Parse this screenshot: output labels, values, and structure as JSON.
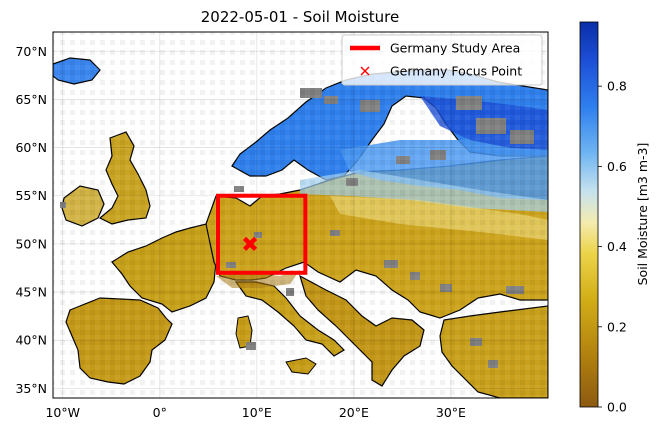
{
  "title": "2022-05-01 - Soil Moisture",
  "map": {
    "lon_range": [
      -11,
      40
    ],
    "lat_range": [
      34,
      72
    ],
    "lat_ticks": [
      {
        "value": 70,
        "label": "70°N"
      },
      {
        "value": 65,
        "label": "65°N"
      },
      {
        "value": 60,
        "label": "60°N"
      },
      {
        "value": 55,
        "label": "55°N"
      },
      {
        "value": 50,
        "label": "50°N"
      },
      {
        "value": 45,
        "label": "45°N"
      },
      {
        "value": 40,
        "label": "40°N"
      },
      {
        "value": 35,
        "label": "35°N"
      }
    ],
    "lon_ticks": [
      {
        "value": -10,
        "label": "10°W"
      },
      {
        "value": 0,
        "label": "0°"
      },
      {
        "value": 10,
        "label": "10°E"
      },
      {
        "value": 20,
        "label": "20°E"
      },
      {
        "value": 30,
        "label": "30°E"
      }
    ],
    "grid": true,
    "study_area": {
      "lon": [
        6,
        15
      ],
      "lat": [
        47,
        55
      ],
      "color": "#ff0000"
    },
    "focus_point": {
      "lon": 9.3,
      "lat": 50.0,
      "color": "#ff0000"
    },
    "colors": {
      "missing": "#808080",
      "coastline": "#000000",
      "ocean": "#ffffff"
    }
  },
  "legend": {
    "placement": "top-right",
    "entries": [
      {
        "label": "Germany Study Area",
        "kind": "line",
        "color": "#ff0000"
      },
      {
        "label": "Germany Focus Point",
        "kind": "x-marker",
        "color": "#ff0000"
      }
    ]
  },
  "colorbar": {
    "label": "Soil Moisture [m3 m-3]",
    "range": [
      0.0,
      0.96
    ],
    "ticks": [
      {
        "value": 0.0,
        "label": "0.0"
      },
      {
        "value": 0.2,
        "label": "0.2"
      },
      {
        "value": 0.4,
        "label": "0.4"
      },
      {
        "value": 0.6,
        "label": "0.6"
      },
      {
        "value": 0.8,
        "label": "0.8"
      }
    ],
    "colormap": [
      "#8c5a10",
      "#c49a10",
      "#e6c820",
      "#f4ebb0",
      "#b8dcec",
      "#3d92f0",
      "#1d5ae0",
      "#0a2ea8"
    ]
  }
}
